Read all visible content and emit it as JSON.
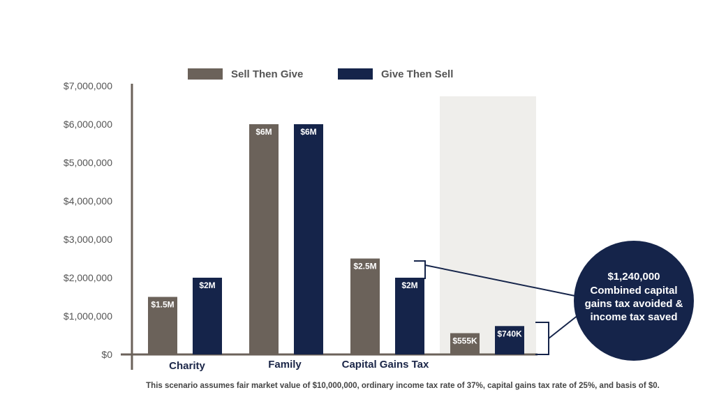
{
  "chart_data": {
    "type": "bar",
    "categories": [
      "Charity",
      "Family",
      "Capital Gains Tax",
      ""
    ],
    "series": [
      {
        "name": "Sell Then Give",
        "color": "#6b625a",
        "values": [
          1500000,
          6000000,
          2500000,
          555000
        ],
        "labels": [
          "$1.5M",
          "$6M",
          "$2.5M",
          "$555K"
        ]
      },
      {
        "name": "Give Then Sell",
        "color": "#15244a",
        "values": [
          2000000,
          6000000,
          2000000,
          740000
        ],
        "labels": [
          "$2M",
          "$6M",
          "$2M",
          "$740K"
        ]
      }
    ],
    "ylim": [
      0,
      7000000
    ],
    "yticks": [
      0,
      1000000,
      2000000,
      3000000,
      4000000,
      5000000,
      6000000,
      7000000
    ],
    "ytick_labels": [
      "$0",
      "$1,000,000",
      "$2,000,000",
      "$3,000,000",
      "$4,000,000",
      "$5,000,000",
      "$6,000,000",
      "$7,000,000"
    ],
    "legend_position": "top",
    "grid": false,
    "highlight_color": "#efeeeb",
    "callout": {
      "lines": [
        "$1,240,000",
        "Combined capital",
        "gains tax avoided &",
        "income tax saved"
      ],
      "color": "#15244a"
    },
    "footnote": "This scenario assumes fair market value of $10,000,000, ordinary income tax rate of 37%, capital gains tax rate of 25%, and basis of $0."
  }
}
